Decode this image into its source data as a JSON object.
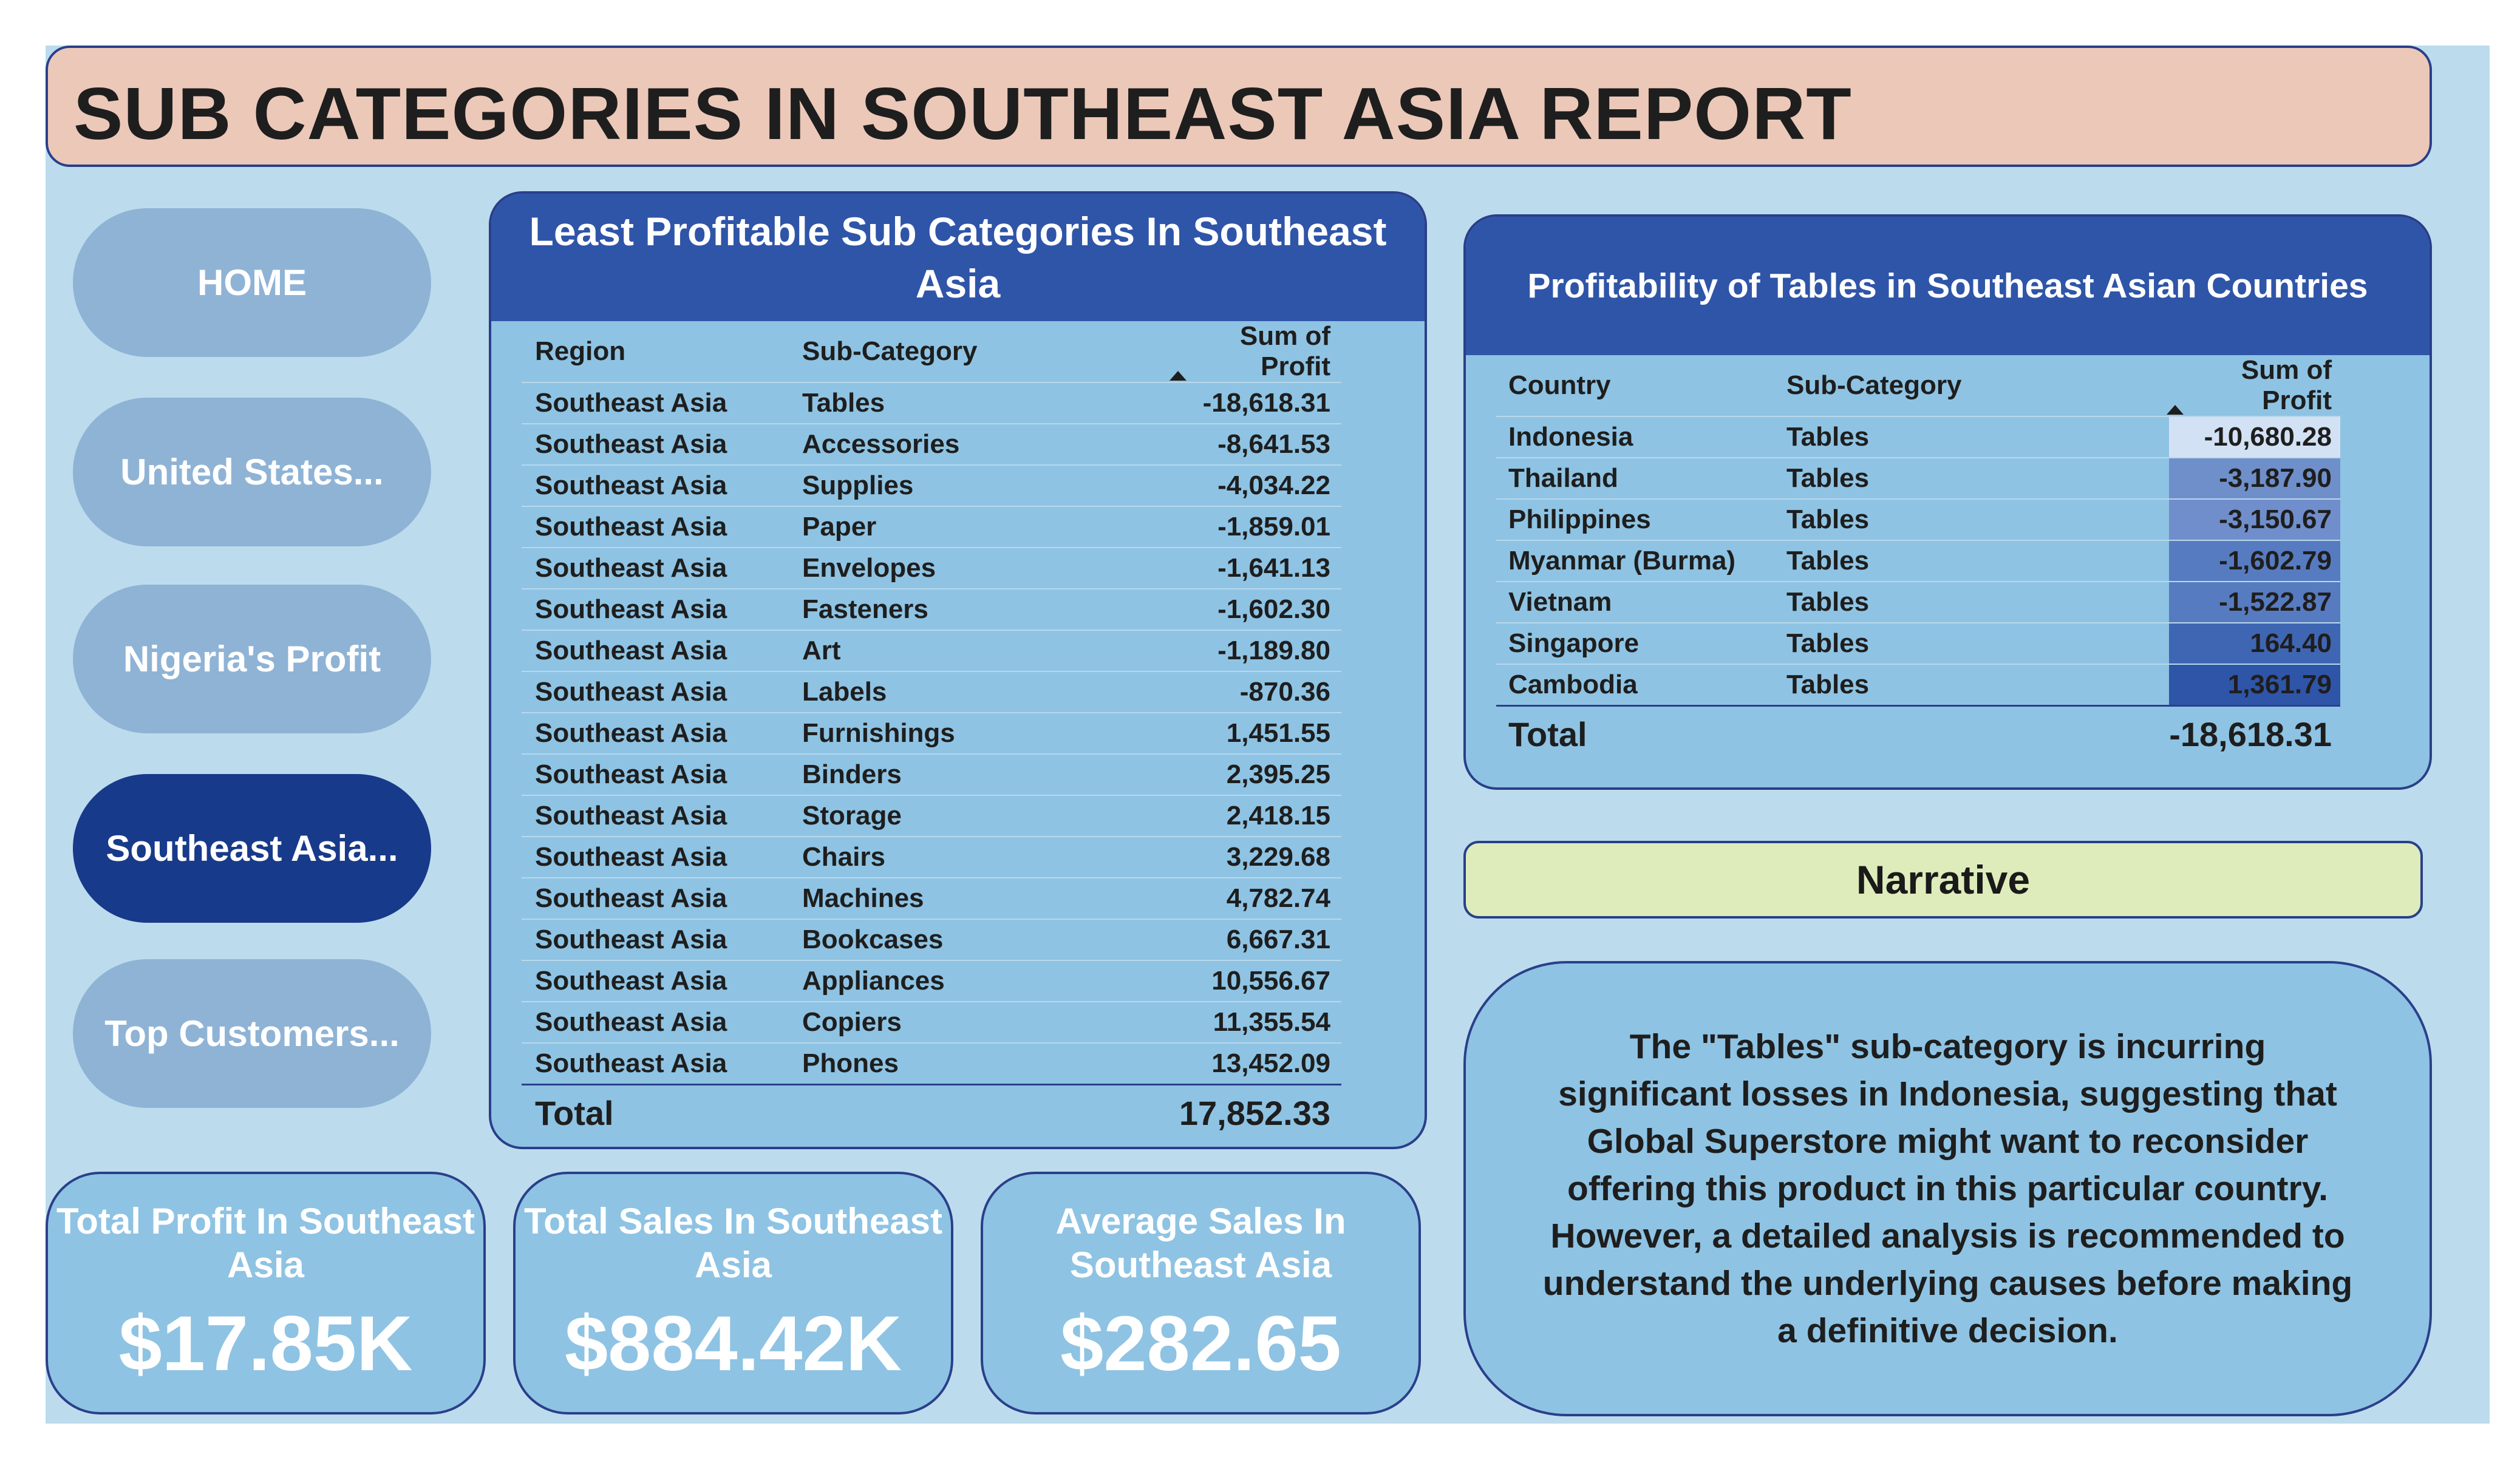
{
  "title": "SUB CATEGORIES IN SOUTHEAST ASIA REPORT",
  "nav": [
    {
      "label": "HOME",
      "active": false
    },
    {
      "label": "United States...",
      "active": false
    },
    {
      "label": "Nigeria's Profit",
      "active": false
    },
    {
      "label": "Southeast Asia...",
      "active": true
    },
    {
      "label": "Top Customers...",
      "active": false
    }
  ],
  "left_table": {
    "title": "Least Profitable Sub Categories In Southeast Asia",
    "columns": [
      "Region",
      "Sub-Category",
      "Sum of Profit"
    ],
    "rows": [
      [
        "Southeast Asia",
        "Tables",
        "-18,618.31"
      ],
      [
        "Southeast Asia",
        "Accessories",
        "-8,641.53"
      ],
      [
        "Southeast Asia",
        "Supplies",
        "-4,034.22"
      ],
      [
        "Southeast Asia",
        "Paper",
        "-1,859.01"
      ],
      [
        "Southeast Asia",
        "Envelopes",
        "-1,641.13"
      ],
      [
        "Southeast Asia",
        "Fasteners",
        "-1,602.30"
      ],
      [
        "Southeast Asia",
        "Art",
        "-1,189.80"
      ],
      [
        "Southeast Asia",
        "Labels",
        "-870.36"
      ],
      [
        "Southeast Asia",
        "Furnishings",
        "1,451.55"
      ],
      [
        "Southeast Asia",
        "Binders",
        "2,395.25"
      ],
      [
        "Southeast Asia",
        "Storage",
        "2,418.15"
      ],
      [
        "Southeast Asia",
        "Chairs",
        "3,229.68"
      ],
      [
        "Southeast Asia",
        "Machines",
        "4,782.74"
      ],
      [
        "Southeast Asia",
        "Bookcases",
        "6,667.31"
      ],
      [
        "Southeast Asia",
        "Appliances",
        "10,556.67"
      ],
      [
        "Southeast Asia",
        "Copiers",
        "11,355.54"
      ],
      [
        "Southeast Asia",
        "Phones",
        "13,452.09"
      ]
    ],
    "total_label": "Total",
    "total_value": "17,852.33"
  },
  "right_table": {
    "title": "Profitability of Tables in Southeast Asian Countries",
    "columns": [
      "Country",
      "Sub-Category",
      "Sum of Profit"
    ],
    "rows": [
      {
        "country": "Indonesia",
        "sub": "Tables",
        "profit": "-10,680.28",
        "color": "#d3e1f4"
      },
      {
        "country": "Thailand",
        "sub": "Tables",
        "profit": "-3,187.90",
        "color": "#6f8fcb"
      },
      {
        "country": "Philippines",
        "sub": "Tables",
        "profit": "-3,150.67",
        "color": "#6f8ecb"
      },
      {
        "country": "Myanmar (Burma)",
        "sub": "Tables",
        "profit": "-1,602.79",
        "color": "#577bc0"
      },
      {
        "country": "Vietnam",
        "sub": "Tables",
        "profit": "-1,522.87",
        "color": "#577bc0"
      },
      {
        "country": "Singapore",
        "sub": "Tables",
        "profit": "164.40",
        "color": "#3f66b3"
      },
      {
        "country": "Cambodia",
        "sub": "Tables",
        "profit": "1,361.79",
        "color": "#2f55a8"
      }
    ],
    "total_label": "Total",
    "total_value": "-18,618.31"
  },
  "kpis": [
    {
      "label": "Total Profit In Southeast Asia",
      "value": "$17.85K"
    },
    {
      "label": "Total Sales In Southeast Asia",
      "value": "$884.42K"
    },
    {
      "label": "Average Sales In Southeast Asia",
      "value": "$282.65"
    }
  ],
  "narrative": {
    "title": "Narrative",
    "text": "The \"Tables\" sub-category is incurring significant losses in Indonesia, suggesting that Global Superstore might want to reconsider offering this product in this particular country. However, a detailed analysis is recommended to understand the underlying causes before making a definitive decision."
  }
}
